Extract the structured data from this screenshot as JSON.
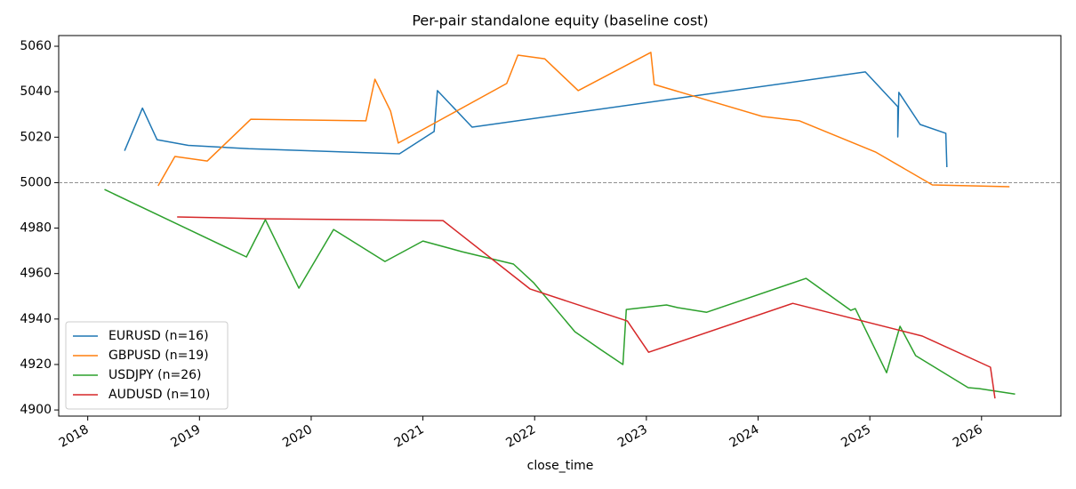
{
  "chart_data": {
    "type": "line",
    "title": "Per-pair standalone equity (baseline cost)",
    "x_label": "close_time",
    "xlim": [
      2017.74,
      2026.71
    ],
    "xticks": [
      2018,
      2019,
      2020,
      2021,
      2022,
      2023,
      2024,
      2025,
      2026
    ],
    "ylim": [
      4897.3,
      5064.7
    ],
    "yticks": [
      4900,
      4920,
      4940,
      4960,
      4980,
      5000,
      5020,
      5040,
      5060
    ],
    "reference_line": 5000,
    "legend": "lower left",
    "series": [
      {
        "name": "EURUSD (n=16)",
        "color": "#1f77b4",
        "x": [
          2018.33,
          2018.49,
          2018.62,
          2018.9,
          2019.44,
          2020.79,
          2021.1,
          2021.13,
          2021.44,
          2024.96,
          2025.25,
          2025.25,
          2025.26,
          2025.45,
          2025.68,
          2025.69
        ],
        "values": [
          5014.0,
          5032.8,
          5018.9,
          5016.4,
          5014.9,
          5012.7,
          5022.5,
          5040.5,
          5024.4,
          5048.7,
          5033.4,
          5020.1,
          5039.7,
          5025.6,
          5021.7,
          5006.8
        ]
      },
      {
        "name": "GBPUSD (n=19)",
        "color": "#ff7f0e",
        "x": [
          2018.63,
          2018.78,
          2019.07,
          2019.46,
          2020.49,
          2020.57,
          2020.71,
          2020.78,
          2021.75,
          2021.85,
          2022.09,
          2022.39,
          2023.04,
          2023.07,
          2024.04,
          2024.37,
          2025.05,
          2025.56,
          2026.25
        ],
        "values": [
          4998.6,
          5011.5,
          5009.5,
          5027.9,
          5027.2,
          5045.5,
          5031.5,
          5017.4,
          5043.6,
          5056.1,
          5054.5,
          5040.5,
          5057.3,
          5043.2,
          5029.1,
          5027.2,
          5013.5,
          4999.0,
          4998.2
        ]
      },
      {
        "name": "USDJPY (n=26)",
        "color": "#2ca02c",
        "x": [
          2018.15,
          2019.42,
          2019.59,
          2019.89,
          2020.2,
          2020.66,
          2021.0,
          2021.35,
          2021.81,
          2021.99,
          2022.36,
          2022.59,
          2022.79,
          2022.82,
          2023.18,
          2023.28,
          2023.54,
          2024.43,
          2024.83,
          2024.87,
          2025.15,
          2025.27,
          2025.41,
          2025.88,
          2025.98,
          2026.3
        ],
        "values": [
          4997.0,
          4967.3,
          4983.7,
          4953.6,
          4979.4,
          4965.3,
          4974.3,
          4969.6,
          4964.2,
          4956.0,
          4934.4,
          4926.6,
          4920.0,
          4944.2,
          4946.2,
          4945.0,
          4943.0,
          4957.9,
          4943.8,
          4944.6,
          4916.4,
          4936.8,
          4923.9,
          4909.8,
          4909.4,
          4907.0
        ]
      },
      {
        "name": "AUDUSD (n=10)",
        "color": "#d62728",
        "x": [
          2018.8,
          2019.6,
          2021.18,
          2021.96,
          2022.83,
          2023.02,
          2024.31,
          2025.47,
          2026.08,
          2026.12
        ],
        "values": [
          4984.9,
          4984.1,
          4983.3,
          4953.2,
          4939.1,
          4925.4,
          4946.9,
          4932.5,
          4918.8,
          4905.1
        ]
      }
    ]
  }
}
